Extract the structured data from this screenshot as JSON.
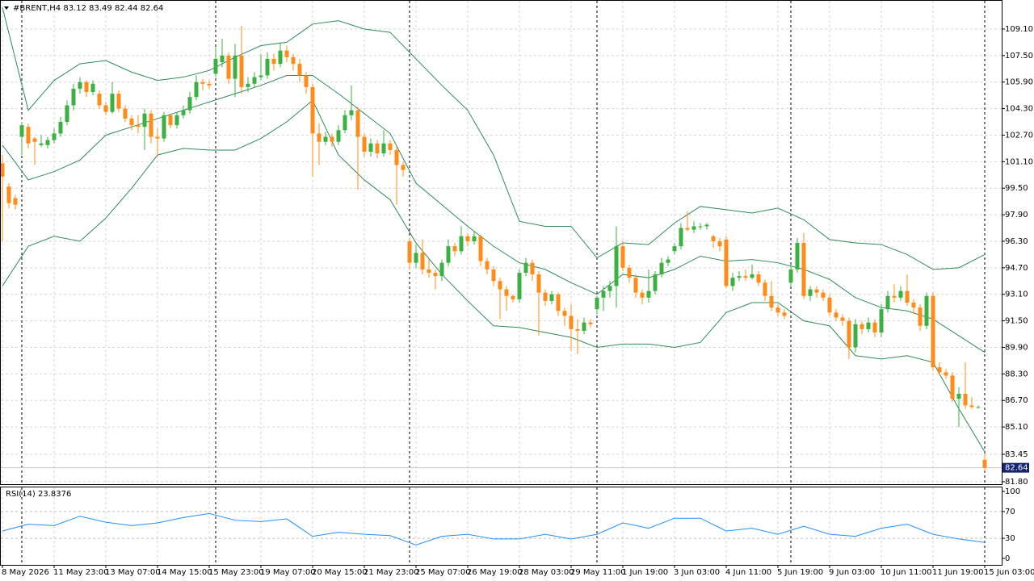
{
  "chart_data": {
    "type": "candlestick",
    "title": "#BRENT,H4  83.12 83.49 82.44 82.64",
    "categories": [
      "8 May 2026",
      null,
      null,
      null,
      null,
      null,
      null,
      null,
      "11 May 23:00",
      null,
      null,
      null,
      null,
      null,
      null,
      null,
      "13 May 07:00",
      null,
      null,
      null,
      null,
      null,
      null,
      null,
      "14 May 15:00",
      null,
      null,
      null,
      null,
      null,
      null,
      null,
      "15 May 23:00",
      null,
      null,
      null,
      null,
      null,
      null,
      null,
      "19 May 07:00",
      null,
      null,
      null,
      null,
      null,
      null,
      null,
      "20 May 15:00",
      null,
      null,
      null,
      null,
      null,
      null,
      null,
      "21 May 23:00",
      null,
      null,
      null,
      null,
      null,
      null,
      null,
      "25 May 07:00",
      null,
      null,
      null,
      null,
      null,
      null,
      null,
      "26 May 19:00",
      null,
      null,
      null,
      null,
      null,
      null,
      null,
      "28 May 03:00",
      null,
      null,
      null,
      null,
      null,
      null,
      null,
      "29 May 11:00",
      null,
      null,
      null,
      null,
      null,
      null,
      null,
      "1 Jun 19:00",
      null,
      null,
      null,
      null,
      null,
      null,
      null,
      "3 Jun 03:00",
      null,
      null,
      null,
      null,
      null,
      null,
      null,
      "4 Jun 11:00",
      null,
      null,
      null,
      null,
      null,
      null,
      null,
      "5 Jun 19:00",
      null,
      null,
      null,
      null,
      null,
      null,
      null,
      "9 Jun 03:00",
      null,
      null,
      null,
      null,
      null,
      null,
      null,
      "10 Jun 11:00",
      null,
      null,
      null,
      null,
      null,
      null,
      null,
      "11 Jun 19:00",
      null,
      null,
      null,
      null,
      null,
      null,
      null,
      "15 Jun 03:00"
    ],
    "ohlc": [
      [
        101.0,
        101.5,
        96.3,
        100.2
      ],
      [
        99.6,
        99.8,
        98.3,
        98.6
      ],
      [
        98.9,
        99.1,
        98.2,
        98.5
      ],
      [
        102.6,
        103.5,
        101.5,
        103.3
      ],
      [
        103.2,
        103.4,
        101.9,
        102.2
      ],
      [
        102.5,
        102.6,
        100.9,
        102.3
      ],
      [
        102.1,
        102.7,
        102.0,
        102.2
      ],
      [
        102.1,
        102.6,
        101.9,
        102.4
      ],
      [
        102.4,
        103.1,
        102.2,
        102.8
      ],
      [
        102.8,
        103.8,
        102.6,
        103.5
      ],
      [
        103.5,
        104.8,
        103.3,
        104.5
      ],
      [
        104.5,
        105.8,
        104.2,
        105.5
      ],
      [
        105.5,
        106.2,
        105.2,
        105.9
      ],
      [
        105.9,
        106.0,
        105.0,
        105.3
      ],
      [
        105.3,
        106.0,
        105.1,
        105.8
      ],
      [
        105.2,
        105.4,
        104.3,
        104.5
      ],
      [
        104.5,
        104.7,
        103.9,
        104.1
      ],
      [
        104.1,
        105.9,
        104.0,
        105.2
      ],
      [
        105.2,
        105.4,
        104.1,
        104.3
      ],
      [
        104.3,
        104.5,
        103.5,
        103.7
      ],
      [
        103.7,
        103.9,
        103.0,
        103.3
      ],
      [
        103.3,
        103.9,
        102.8,
        103.2
      ],
      [
        103.2,
        104.3,
        101.8,
        104.0
      ],
      [
        104.0,
        104.2,
        102.2,
        102.6
      ],
      [
        102.6,
        103.1,
        101.4,
        102.5
      ],
      [
        102.5,
        104.1,
        102.3,
        103.9
      ],
      [
        103.9,
        104.0,
        103.1,
        103.3
      ],
      [
        103.3,
        104.1,
        103.1,
        103.9
      ],
      [
        103.9,
        104.5,
        103.7,
        104.2
      ],
      [
        104.2,
        105.3,
        104.0,
        105.0
      ],
      [
        105.0,
        106.3,
        104.8,
        105.9
      ],
      [
        105.9,
        106.1,
        105.4,
        105.8
      ],
      [
        105.8,
        106.0,
        105.5,
        105.7
      ],
      [
        106.4,
        108.0,
        106.2,
        107.3
      ],
      [
        107.1,
        108.5,
        106.8,
        107.5
      ],
      [
        107.5,
        107.7,
        105.8,
        106.1
      ],
      [
        106.1,
        108.2,
        105.0,
        107.5
      ],
      [
        107.5,
        109.3,
        105.2,
        105.6
      ],
      [
        105.6,
        106.2,
        105.3,
        105.8
      ],
      [
        105.8,
        106.5,
        105.6,
        106.2
      ],
      [
        106.2,
        107.6,
        106.0,
        106.3
      ],
      [
        106.3,
        107.7,
        106.1,
        107.3
      ],
      [
        107.3,
        107.6,
        106.6,
        107.0
      ],
      [
        107.0,
        108.3,
        106.8,
        107.8
      ],
      [
        107.8,
        108.1,
        107.1,
        107.4
      ],
      [
        107.4,
        107.6,
        106.6,
        107.0
      ],
      [
        107.0,
        107.3,
        105.9,
        106.3
      ],
      [
        106.3,
        106.5,
        105.2,
        105.6
      ],
      [
        105.6,
        105.8,
        100.2,
        102.8
      ],
      [
        102.8,
        103.4,
        100.9,
        102.3
      ],
      [
        102.3,
        102.9,
        102.1,
        102.6
      ],
      [
        102.6,
        102.8,
        102.0,
        102.3
      ],
      [
        102.3,
        103.3,
        102.1,
        103.0
      ],
      [
        103.0,
        104.2,
        102.8,
        103.9
      ],
      [
        103.9,
        105.7,
        103.6,
        104.2
      ],
      [
        104.2,
        104.4,
        99.4,
        102.6
      ],
      [
        102.6,
        102.8,
        101.4,
        101.7
      ],
      [
        101.7,
        102.5,
        101.4,
        102.2
      ],
      [
        102.2,
        102.4,
        101.3,
        101.6
      ],
      [
        101.6,
        103.0,
        101.4,
        102.2
      ],
      [
        102.2,
        102.4,
        101.5,
        101.8
      ],
      [
        101.8,
        102.0,
        98.5,
        100.9
      ],
      [
        100.9,
        101.1,
        100.2,
        100.6
      ],
      [
        96.3,
        96.5,
        94.6,
        95.0
      ],
      [
        95.0,
        96.1,
        94.7,
        95.6
      ],
      [
        95.6,
        96.4,
        94.3,
        94.6
      ],
      [
        94.6,
        95.2,
        94.1,
        94.4
      ],
      [
        94.4,
        94.6,
        93.4,
        94.2
      ],
      [
        94.2,
        95.2,
        93.9,
        95.0
      ],
      [
        95.0,
        96.4,
        94.8,
        96.0
      ],
      [
        96.0,
        96.2,
        95.4,
        95.7
      ],
      [
        95.7,
        97.2,
        95.5,
        96.6
      ],
      [
        96.6,
        96.8,
        96.0,
        96.3
      ],
      [
        96.3,
        96.9,
        96.1,
        96.6
      ],
      [
        96.6,
        96.7,
        94.8,
        95.1
      ],
      [
        95.1,
        95.3,
        94.3,
        94.6
      ],
      [
        94.6,
        94.8,
        93.6,
        93.9
      ],
      [
        93.9,
        94.1,
        91.6,
        93.4
      ],
      [
        93.4,
        93.6,
        92.1,
        93.0
      ],
      [
        93.0,
        93.1,
        92.6,
        92.8
      ],
      [
        92.8,
        94.6,
        92.6,
        94.4
      ],
      [
        94.4,
        95.3,
        94.2,
        95.0
      ],
      [
        95.0,
        95.2,
        93.9,
        94.3
      ],
      [
        94.3,
        94.5,
        90.6,
        93.2
      ],
      [
        93.2,
        93.4,
        92.4,
        92.7
      ],
      [
        92.7,
        93.3,
        92.5,
        93.1
      ],
      [
        93.1,
        93.2,
        91.8,
        92.1
      ],
      [
        92.1,
        92.3,
        91.2,
        91.8
      ],
      [
        91.8,
        92.5,
        89.7,
        91.0
      ],
      [
        91.0,
        91.6,
        89.5,
        90.9
      ],
      [
        90.9,
        91.7,
        90.7,
        91.4
      ],
      [
        91.4,
        91.6,
        91.1,
        91.3
      ],
      [
        92.2,
        93.0,
        91.9,
        92.9
      ],
      [
        92.9,
        93.6,
        92.1,
        93.3
      ],
      [
        93.3,
        93.9,
        92.9,
        93.6
      ],
      [
        93.6,
        97.2,
        92.3,
        96.0
      ],
      [
        96.0,
        96.3,
        94.5,
        94.7
      ],
      [
        94.7,
        94.9,
        93.8,
        94.1
      ],
      [
        94.1,
        94.3,
        92.9,
        93.2
      ],
      [
        93.2,
        93.4,
        92.5,
        92.9
      ],
      [
        92.9,
        94.6,
        92.6,
        93.3
      ],
      [
        93.3,
        94.5,
        93.1,
        94.3
      ],
      [
        94.3,
        95.3,
        94.1,
        95.0
      ],
      [
        95.0,
        95.4,
        94.8,
        95.2
      ],
      [
        95.7,
        96.2,
        95.5,
        96.0
      ],
      [
        96.0,
        97.4,
        95.8,
        97.1
      ],
      [
        97.1,
        98.1,
        96.9,
        97.0
      ],
      [
        97.0,
        97.5,
        96.8,
        97.2
      ],
      [
        97.2,
        97.4,
        97.0,
        97.2
      ],
      [
        97.2,
        97.4,
        97.0,
        97.3
      ],
      [
        96.6,
        96.7,
        95.9,
        96.3
      ],
      [
        96.3,
        96.5,
        95.7,
        96.0
      ],
      [
        96.4,
        96.6,
        93.5,
        93.6
      ],
      [
        93.6,
        94.4,
        93.3,
        94.1
      ],
      [
        94.1,
        94.5,
        93.9,
        94.2
      ],
      [
        94.2,
        94.6,
        93.9,
        94.1
      ],
      [
        94.1,
        94.9,
        94.0,
        94.3
      ],
      [
        94.3,
        94.5,
        93.6,
        93.8
      ],
      [
        93.8,
        94.0,
        92.7,
        93.0
      ],
      [
        93.0,
        93.9,
        92.1,
        92.3
      ],
      [
        92.3,
        92.5,
        91.8,
        92.0
      ],
      [
        92.0,
        92.2,
        91.6,
        91.8
      ],
      [
        93.8,
        94.9,
        93.6,
        94.6
      ],
      [
        94.6,
        96.5,
        94.4,
        96.2
      ],
      [
        96.2,
        96.8,
        92.8,
        93.0
      ],
      [
        93.0,
        93.6,
        92.7,
        93.4
      ],
      [
        93.4,
        93.6,
        92.9,
        93.2
      ],
      [
        93.2,
        93.4,
        92.7,
        92.9
      ],
      [
        92.9,
        93.1,
        91.8,
        92.0
      ],
      [
        92.0,
        92.2,
        91.5,
        91.7
      ],
      [
        91.7,
        91.9,
        91.2,
        91.5
      ],
      [
        91.5,
        91.7,
        89.2,
        89.9
      ],
      [
        89.9,
        91.6,
        89.6,
        91.3
      ],
      [
        91.3,
        91.5,
        90.7,
        91.0
      ],
      [
        91.0,
        91.7,
        90.8,
        91.4
      ],
      [
        91.4,
        91.6,
        90.5,
        90.8
      ],
      [
        90.8,
        92.5,
        90.5,
        92.2
      ],
      [
        92.2,
        93.3,
        92.0,
        93.0
      ],
      [
        93.0,
        93.7,
        92.6,
        92.9
      ],
      [
        92.9,
        93.6,
        92.7,
        93.3
      ],
      [
        93.3,
        94.3,
        92.4,
        92.6
      ],
      [
        92.6,
        92.8,
        91.9,
        92.3
      ],
      [
        92.3,
        92.5,
        90.9,
        91.2
      ],
      [
        91.2,
        93.2,
        91.0,
        93.0
      ],
      [
        93.0,
        93.2,
        88.5,
        88.7
      ],
      [
        88.7,
        89.0,
        88.2,
        88.4
      ],
      [
        88.4,
        88.6,
        88.0,
        88.2
      ],
      [
        88.2,
        88.4,
        86.6,
        86.8
      ],
      [
        86.8,
        87.5,
        85.1,
        87.1
      ],
      [
        87.1,
        89.0,
        86.2,
        86.4
      ],
      [
        86.4,
        86.9,
        86.2,
        86.3
      ],
      [
        86.3,
        86.4,
        86.2,
        86.3
      ],
      [
        83.12,
        83.49,
        82.44,
        82.64
      ]
    ],
    "up_color": "#3cb043",
    "down_color": "#ff8c1a",
    "ylim": [
      81.65,
      110.85
    ],
    "yticks": [
      {
        "value": 81.8,
        "label": "81.80"
      },
      {
        "value": 83.45,
        "label": "83.45"
      },
      {
        "value": 85.1,
        "label": "85.10"
      },
      {
        "value": 86.7,
        "label": "86.70"
      },
      {
        "value": 88.3,
        "label": "88.30"
      },
      {
        "value": 89.9,
        "label": "89.90"
      },
      {
        "value": 91.5,
        "label": "91.50"
      },
      {
        "value": 93.1,
        "label": "93.10"
      },
      {
        "value": 94.7,
        "label": "94.70"
      },
      {
        "value": 96.3,
        "label": "96.30"
      },
      {
        "value": 97.9,
        "label": "97.90"
      },
      {
        "value": 99.5,
        "label": "99.50"
      },
      {
        "value": 101.1,
        "label": "101.10"
      },
      {
        "value": 102.7,
        "label": "102.70"
      },
      {
        "value": 104.3,
        "label": "104.30"
      },
      {
        "value": 105.9,
        "label": "105.90"
      },
      {
        "value": 107.5,
        "label": "107.50"
      },
      {
        "value": 109.1,
        "label": "109.10"
      }
    ],
    "grid": true,
    "x": [
      0,
      4,
      8,
      12,
      16,
      20,
      24,
      28,
      32,
      36,
      40,
      44,
      48,
      52,
      56,
      60,
      64,
      68,
      72,
      76,
      80,
      84,
      88,
      92,
      96,
      100,
      104,
      108,
      112,
      116,
      120,
      124,
      128,
      132,
      136,
      140,
      144,
      148,
      152
    ],
    "bands": {
      "color": "#2e8b57",
      "upper": [
        110.4,
        104.2,
        106.0,
        107.0,
        107.2,
        106.5,
        106.0,
        106.2,
        106.6,
        107.4,
        108.1,
        108.3,
        109.4,
        109.6,
        109.1,
        108.9,
        107.3,
        105.7,
        104.2,
        101.5,
        97.5,
        97.2,
        97.2,
        95.3,
        96.2,
        96.1,
        97.4,
        98.4,
        98.2,
        98.0,
        98.3,
        97.6,
        96.4,
        96.2,
        96.1,
        95.5,
        94.6,
        94.7,
        95.5
      ],
      "middle": [
        102.1,
        100.0,
        100.5,
        101.2,
        102.7,
        103.2,
        103.7,
        104.2,
        104.7,
        105.2,
        105.7,
        106.3,
        106.3,
        105.2,
        104.0,
        102.8,
        99.8,
        98.5,
        97.2,
        96.0,
        95.0,
        94.6,
        93.8,
        93.1,
        94.3,
        94.1,
        94.6,
        95.4,
        95.1,
        95.2,
        95.0,
        94.6,
        94.0,
        92.9,
        92.3,
        92.1,
        91.6,
        90.6,
        89.6
      ],
      "lower": [
        93.6,
        96.0,
        96.6,
        96.3,
        97.7,
        99.5,
        101.5,
        101.9,
        101.8,
        101.8,
        102.5,
        103.5,
        104.8,
        101.5,
        100.0,
        98.8,
        96.2,
        94.3,
        92.7,
        91.2,
        91.1,
        90.8,
        90.5,
        89.9,
        90.1,
        90.1,
        89.9,
        90.2,
        92.0,
        92.6,
        92.6,
        91.5,
        91.2,
        89.4,
        89.2,
        89.4,
        89.0,
        86.2,
        83.6
      ]
    },
    "rsi": {
      "title": "RSI(14) 23.8376",
      "color": "#1e90ff",
      "ylim": [
        0,
        100
      ],
      "yticks": [
        0,
        30,
        70,
        100
      ],
      "values": [
        41,
        51,
        49,
        63,
        54,
        49,
        53,
        61,
        67,
        57,
        55,
        59,
        33,
        39,
        36,
        34,
        20,
        33,
        36,
        29,
        29,
        36,
        29,
        36,
        53,
        45,
        60,
        60,
        41,
        45,
        36,
        48,
        36,
        33,
        45,
        51,
        36,
        29,
        23.8376
      ]
    }
  }
}
